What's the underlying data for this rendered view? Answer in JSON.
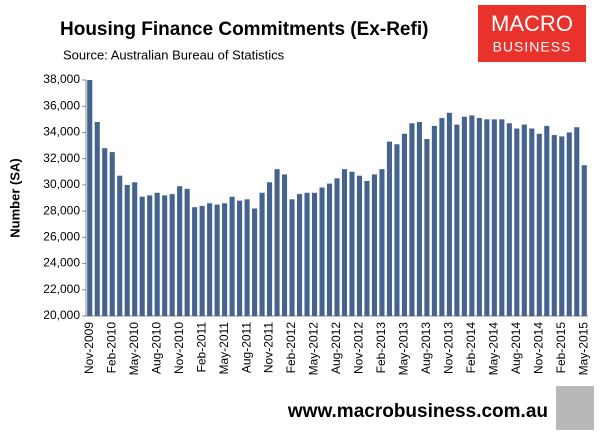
{
  "chart_data": {
    "type": "bar",
    "title": "Housing  Finance Commitments (Ex-Refi)",
    "subtitle": "Source: Australian Bureau of Statistics",
    "ylabel": "Number (SA)",
    "logo": [
      "MACRO",
      "BUSINESS"
    ],
    "footer": "www.macrobusiness.com.au",
    "color": "#45638f",
    "categories": [
      "Nov-2009",
      null,
      null,
      "Feb-2010",
      null,
      null,
      "May-2010",
      null,
      null,
      "Aug-2010",
      null,
      null,
      "Nov-2010",
      null,
      null,
      "Feb-2011",
      null,
      null,
      "May-2011",
      null,
      null,
      "Aug-2011",
      null,
      null,
      "Nov-2011",
      null,
      null,
      "Feb-2012",
      null,
      null,
      "May-2012",
      null,
      null,
      "Aug-2012",
      null,
      null,
      "Nov-2012",
      null,
      null,
      "Feb-2013",
      null,
      null,
      "May-2013",
      null,
      null,
      "Aug-2013",
      null,
      null,
      "Nov-2013",
      null,
      null,
      "Feb-2014",
      null,
      null,
      "May-2014",
      null,
      null,
      "Aug-2014",
      null,
      null,
      "Nov-2014",
      null,
      null,
      "Feb-2015",
      null,
      null,
      "May-2015"
    ],
    "values": [
      38000,
      34800,
      32800,
      32500,
      30700,
      30000,
      30200,
      29100,
      29200,
      29400,
      29200,
      29300,
      29900,
      29700,
      28300,
      28400,
      28600,
      28500,
      28600,
      29100,
      28800,
      28900,
      28200,
      29400,
      30200,
      31200,
      30800,
      28900,
      29300,
      29400,
      29400,
      29800,
      30100,
      30500,
      31200,
      31000,
      30700,
      30300,
      30800,
      31200,
      33300,
      33100,
      33900,
      34700,
      34800,
      33500,
      34500,
      35100,
      35500,
      34600,
      35200,
      35300,
      35100,
      35000,
      35000,
      35000,
      34700,
      34300,
      34600,
      34300,
      33900,
      34500,
      33800,
      33700,
      34000,
      34400,
      31500
    ],
    "ylim": [
      20000,
      38000
    ],
    "yticks": [
      {
        "value": 20000,
        "label": "20,000"
      },
      {
        "value": 22000,
        "label": "22,000"
      },
      {
        "value": 24000,
        "label": "24,000"
      },
      {
        "value": 26000,
        "label": "26,000"
      },
      {
        "value": 28000,
        "label": "28,000"
      },
      {
        "value": 30000,
        "label": "30,000"
      },
      {
        "value": 32000,
        "label": "32,000"
      },
      {
        "value": 34000,
        "label": "34,000"
      },
      {
        "value": 36000,
        "label": "36,000"
      },
      {
        "value": 38000,
        "label": "38,000"
      }
    ]
  }
}
